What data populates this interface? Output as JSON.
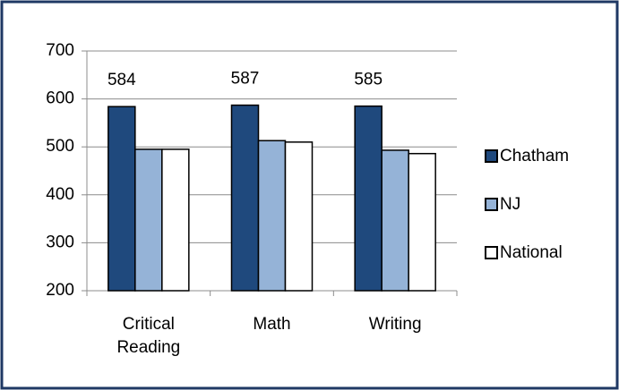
{
  "chart_data": {
    "type": "bar",
    "categories": [
      "Critical Reading",
      "Math",
      "Writing"
    ],
    "series": [
      {
        "name": "Chatham",
        "color": "#1f497d",
        "values": [
          584,
          587,
          585
        ],
        "show_labels": true
      },
      {
        "name": "NJ",
        "color": "#95b3d7",
        "values": [
          495,
          513,
          493
        ],
        "show_labels": false
      },
      {
        "name": "National",
        "color": "#ffffff",
        "values": [
          495,
          510,
          486
        ],
        "show_labels": false
      }
    ],
    "ylim": [
      200,
      700
    ],
    "yticks": [
      200,
      300,
      400,
      500,
      600,
      700
    ],
    "grid": true,
    "legend": "right"
  }
}
